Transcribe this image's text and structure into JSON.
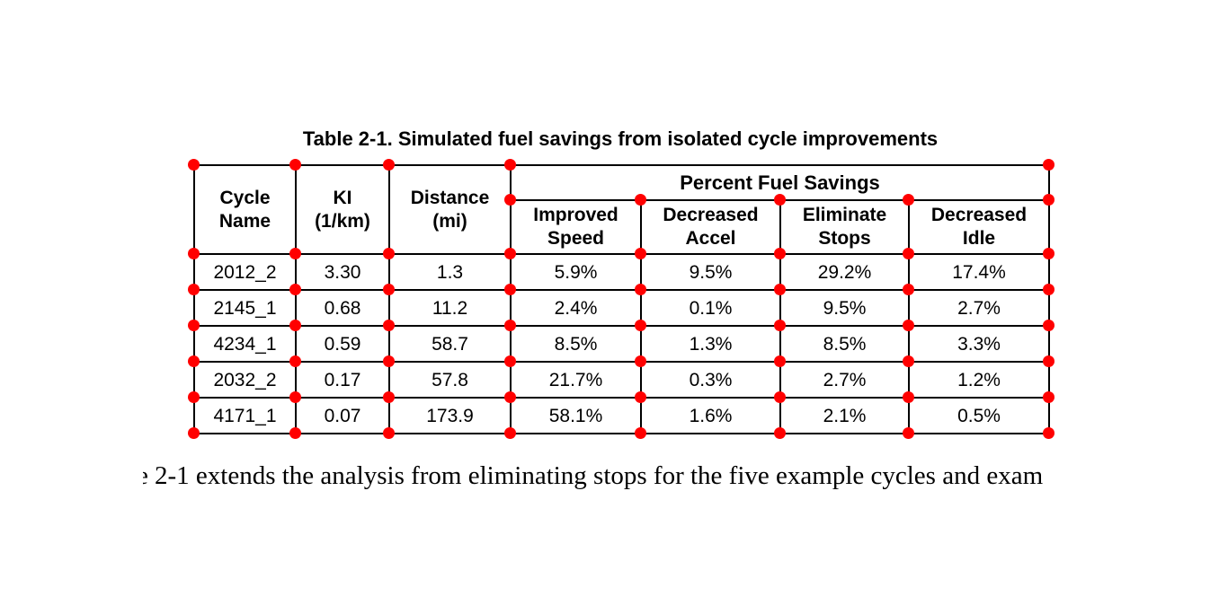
{
  "page": {
    "background": "#ffffff"
  },
  "title": "Table 2-1. Simulated fuel savings from isolated cycle improvements",
  "table": {
    "header": {
      "cycle_name": "Cycle\nName",
      "ki": "KI\n(1/km)",
      "distance": "Distance\n(mi)",
      "span": "Percent Fuel Savings",
      "sub": [
        "Improved\nSpeed",
        "Decreased\nAccel",
        "Eliminate\nStops",
        "Decreased\nIdle"
      ]
    },
    "rows": [
      [
        "2012_2",
        "3.30",
        "1.3",
        "5.9%",
        "9.5%",
        "29.2%",
        "17.4%"
      ],
      [
        "2145_1",
        "0.68",
        "11.2",
        "2.4%",
        "0.1%",
        "9.5%",
        "2.7%"
      ],
      [
        "4234_1",
        "0.59",
        "58.7",
        "8.5%",
        "1.3%",
        "8.5%",
        "3.3%"
      ],
      [
        "2032_2",
        "0.17",
        "57.8",
        "21.7%",
        "0.3%",
        "2.7%",
        "1.2%"
      ],
      [
        "4171_1",
        "0.07",
        "173.9",
        "58.1%",
        "1.6%",
        "2.1%",
        "0.5%"
      ]
    ]
  },
  "annotations": {
    "dot_color": "#ff0000"
  },
  "body_text": {
    "partial_char": "e",
    "text": "2-1 extends the analysis from eliminating stops for the five example cycles and exam"
  }
}
